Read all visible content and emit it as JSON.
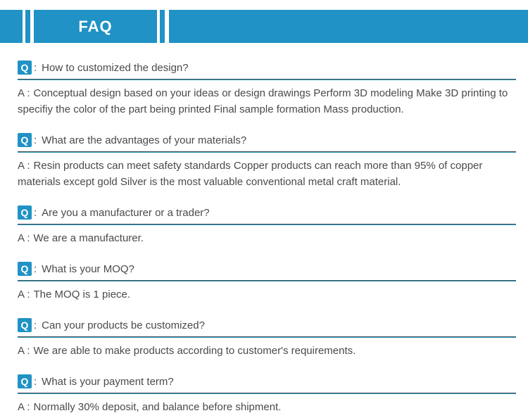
{
  "header": {
    "title": "FAQ"
  },
  "faq": {
    "q_label": "Q",
    "q_colon": ":",
    "a_label": "A :",
    "items": [
      {
        "question": "How to customized the design?",
        "answer": "Conceptual design based on your ideas or design drawings Perform 3D modeling Make 3D printing to specifiy the color of the part being printed Final sample formation Mass production."
      },
      {
        "question": "What are the advantages of your materials?",
        "answer": "Resin products can meet safety standards Copper products can reach more than 95% of copper materials except gold Silver is the most valuable conventional metal craft material."
      },
      {
        "question": "Are you a manufacturer or a trader?",
        "answer": "We are a manufacturer."
      },
      {
        "question": "What is your MOQ?",
        "answer": "The MOQ is 1 piece."
      },
      {
        "question": "Can your products be customized?",
        "answer": "We are able to make products according to customer's requirements."
      },
      {
        "question": "What is your payment term?",
        "answer": "Normally 30% deposit, and balance before shipment."
      }
    ]
  },
  "colors": {
    "accent": "#2092c5",
    "underline_dark": "#41525a",
    "underline_teal": "#2f9ab9",
    "text": "#4a4a4a"
  }
}
